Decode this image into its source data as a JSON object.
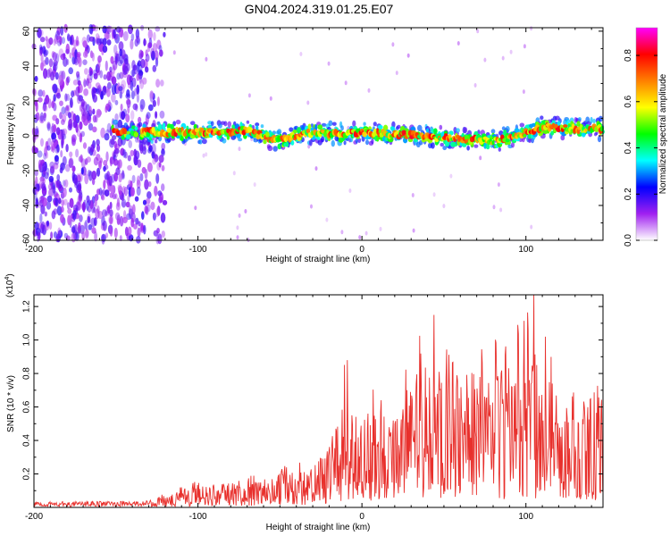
{
  "title": "GN04.2024.319.01.25.E07",
  "chart_data": [
    {
      "type": "heatmap",
      "xlabel": "Height of straight line (km)",
      "ylabel": "Frequency (Hz)",
      "xlim": [
        -200,
        147
      ],
      "ylim": [
        -60,
        62
      ],
      "xticks": [
        -200,
        -100,
        0,
        100
      ],
      "xtick_labels": [
        "-200",
        "-100",
        "0",
        "100"
      ],
      "yticks": [
        60,
        40,
        20,
        0,
        -20,
        -40,
        -60
      ],
      "ytick_labels": [
        "60",
        "40",
        "20",
        "0",
        "-20",
        "-40",
        "-60"
      ],
      "colorbar": {
        "label": "Normalized spectral amplitude",
        "range": [
          0.0,
          0.92
        ],
        "ticks": [
          0.0,
          0.2,
          0.4,
          0.6,
          0.8
        ],
        "tick_labels": [
          "0.0",
          "0.2",
          "0.4",
          "0.6",
          "0.8"
        ],
        "colors": [
          "#ffffff",
          "#a020f0",
          "#0000ff",
          "#00ffff",
          "#00ff00",
          "#ffff00",
          "#ff8000",
          "#ff0000",
          "#ff00ff"
        ]
      },
      "features": {
        "broadband_noise_x": [
          -200,
          -120
        ],
        "band_center_hz": [
          [
            -150,
            2
          ],
          [
            -120,
            2
          ],
          [
            -90,
            2
          ],
          [
            -70,
            3
          ],
          [
            -60,
            0
          ],
          [
            -50,
            -3
          ],
          [
            -40,
            0
          ],
          [
            -30,
            2
          ],
          [
            -10,
            1
          ],
          [
            0,
            2
          ],
          [
            20,
            1
          ],
          [
            40,
            0
          ],
          [
            60,
            -2
          ],
          [
            80,
            -3
          ],
          [
            95,
            0
          ],
          [
            110,
            5
          ],
          [
            130,
            4
          ],
          [
            147,
            4
          ]
        ]
      }
    },
    {
      "type": "line",
      "xlabel": "Height of straight line (km)",
      "ylabel": "SNR (10 * v/v)",
      "y_multiplier": "(x10",
      "y_multiplier_exp": "4",
      "xlim": [
        -200,
        147
      ],
      "ylim": [
        0,
        1.27
      ],
      "xticks": [
        -200,
        -100,
        0,
        100
      ],
      "xtick_labels": [
        "-200",
        "-100",
        "0",
        "100"
      ],
      "yticks": [
        0.2,
        0.4,
        0.6,
        0.8,
        1.0,
        1.2
      ],
      "ytick_labels": [
        "0.2",
        "0.4",
        "0.6",
        "0.8",
        "1.0",
        "1.2"
      ],
      "color": "#e8302c",
      "envelope": {
        "x": [
          -200,
          -130,
          -115,
          -100,
          -80,
          -60,
          -45,
          -30,
          -20,
          -10,
          0,
          10,
          20,
          30,
          40,
          50,
          60,
          70,
          80,
          90,
          100,
          110,
          120,
          130,
          140,
          147
        ],
        "max": [
          0.04,
          0.05,
          0.11,
          0.16,
          0.18,
          0.2,
          0.28,
          0.3,
          0.45,
          0.88,
          0.6,
          0.8,
          0.7,
          0.92,
          1.15,
          0.98,
          0.95,
          0.97,
          1.02,
          0.95,
          1.22,
          1.0,
          0.9,
          0.83,
          0.87,
          0.8
        ]
      },
      "notable_peaks": [
        {
          "x": -9,
          "y": 0.88
        },
        {
          "x": 44,
          "y": 1.15
        },
        {
          "x": 95,
          "y": 1.09
        },
        {
          "x": 105,
          "y": 1.27
        },
        {
          "x": 112,
          "y": 1.02
        }
      ]
    }
  ]
}
